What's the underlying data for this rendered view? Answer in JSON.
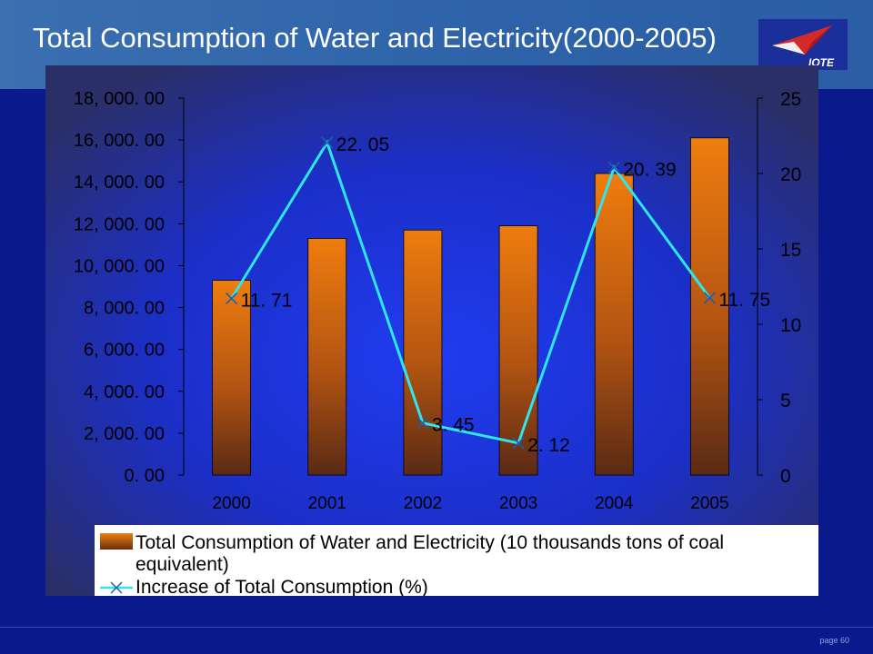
{
  "slide": {
    "title": "Total Consumption of Water and Electricity(2000-2005)",
    "page_label": "page 60",
    "logo_text": "IOTE"
  },
  "colors": {
    "background": "#0a1a8c",
    "header": "#3a6fb0",
    "bar": "#e07a12",
    "line": "#2ee6f0"
  },
  "icons": [
    "iote-logo-icon"
  ],
  "chart_data": {
    "type": "bar",
    "categories": [
      "2000",
      "2001",
      "2002",
      "2003",
      "2004",
      "2005"
    ],
    "y_ticks": [
      "0. 00",
      "2, 000. 00",
      "4, 000. 00",
      "6, 000. 00",
      "8, 000. 00",
      "10, 000. 00",
      "12, 000. 00",
      "14, 000. 00",
      "16, 000. 00",
      "18, 000. 00"
    ],
    "y2_ticks": [
      "0",
      "5",
      "10",
      "15",
      "20",
      "25"
    ],
    "ylim": [
      0,
      18000
    ],
    "y2lim": [
      0,
      25
    ],
    "grid": false,
    "legend_position": "bottom",
    "series": [
      {
        "name": "Total Consumption of Water and Electricity (10 thousands tons of coal equivalent)",
        "type": "bar",
        "axis": "left",
        "values": [
          9300,
          11300,
          11700,
          11900,
          14400,
          16100
        ]
      },
      {
        "name": "Increase of Total Consumption (%)",
        "type": "line",
        "axis": "right",
        "marker": "x",
        "values": [
          11.71,
          22.05,
          3.45,
          2.12,
          20.39,
          11.75
        ],
        "labels": [
          "11. 71",
          "22. 05",
          "3. 45",
          "2. 12",
          "20. 39",
          "11. 75"
        ]
      }
    ]
  }
}
